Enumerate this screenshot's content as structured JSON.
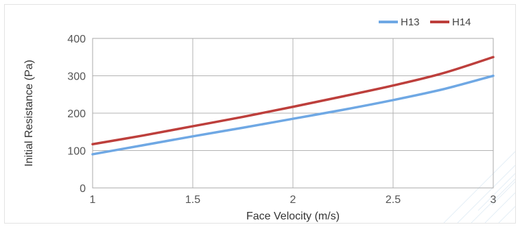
{
  "chart_data": {
    "type": "line",
    "title": "",
    "xlabel": "Face Velocity (m/s)",
    "ylabel": "Initial Resistance (Pa)",
    "xlim": [
      1,
      3
    ],
    "ylim": [
      0,
      400
    ],
    "x_ticks": [
      "1",
      "1.5",
      "2",
      "2.5",
      "3"
    ],
    "y_ticks": [
      "0",
      "100",
      "200",
      "300",
      "400"
    ],
    "grid": true,
    "legend_position": "top-right",
    "x": [
      1,
      1.25,
      1.5,
      1.75,
      2,
      2.25,
      2.5,
      2.75,
      3
    ],
    "series": [
      {
        "name": "H13",
        "color": "#6fa8e4",
        "values": [
          90,
          114,
          138,
          161,
          185,
          209,
          235,
          264,
          300
        ]
      },
      {
        "name": "H14",
        "color": "#bd3f3c",
        "values": [
          117,
          140,
          165,
          190,
          217,
          245,
          274,
          307,
          350
        ]
      }
    ]
  }
}
